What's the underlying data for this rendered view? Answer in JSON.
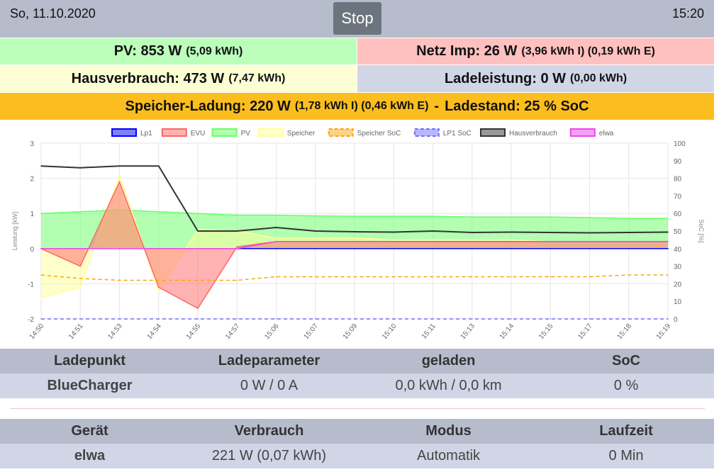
{
  "header": {
    "date": "So, 11.10.2020",
    "time": "15:20",
    "stop_label": "Stop"
  },
  "summary": {
    "pv_main": "PV: 853 W",
    "pv_sub": "(5,09 kWh)",
    "netz_main": "Netz Imp: 26 W",
    "netz_sub": "(3,96 kWh I) (0,19 kWh E)",
    "haus_main": "Hausverbrauch: 473 W",
    "haus_sub": "(7,47 kWh)",
    "lade_main": "Ladeleistung: 0 W",
    "lade_sub": "(0,00 kWh)",
    "speicher_main": "Speicher-Ladung: 220 W",
    "speicher_sub": "(1,78 kWh I) (0,46 kWh E)",
    "speicher_sep": "-",
    "speicher_soc": "Ladestand: 25 % SoC"
  },
  "colors": {
    "pv_bg": "#bbffbb",
    "netz_bg": "#ffc0c0",
    "haus_bg": "#fefed5",
    "lade_bg": "#d0d6e6",
    "speicher_bg": "#fcbe1e"
  },
  "chart_data": {
    "type": "line",
    "x": [
      "14:50",
      "14:51",
      "14:53",
      "14:54",
      "14:55",
      "14:57",
      "15:06",
      "15:07",
      "15:09",
      "15:10",
      "15:11",
      "15:13",
      "15:14",
      "15:15",
      "15:17",
      "15:18",
      "15:19"
    ],
    "y_left": {
      "label": "Leistung [kW]",
      "range": [
        -2,
        3
      ],
      "ticks": [
        "3",
        "2",
        "1",
        "0",
        "-1",
        "-2"
      ]
    },
    "y_right": {
      "label": "SoC [%]",
      "range": [
        0,
        100
      ],
      "ticks": [
        "100",
        "90",
        "80",
        "70",
        "60",
        "50",
        "40",
        "30",
        "20",
        "10",
        "0"
      ]
    },
    "grid": true,
    "legend_position": "top",
    "series": [
      {
        "name": "Lp1",
        "color": "#0000ff",
        "values": [
          0,
          0,
          0,
          0,
          0,
          0,
          0,
          0,
          0,
          0,
          0,
          0,
          0,
          0,
          0,
          0,
          0
        ]
      },
      {
        "name": "EVU",
        "color": "#ff6666",
        "values": [
          0,
          -0.5,
          1.9,
          -1.1,
          -1.7,
          0.05,
          0.2,
          0.2,
          0.2,
          0.2,
          0.2,
          0.2,
          0.2,
          0.2,
          0.2,
          0.2,
          0.2
        ]
      },
      {
        "name": "PV",
        "color": "#66ff66",
        "values": [
          1.0,
          1.05,
          1.1,
          1.05,
          1.0,
          0.95,
          0.95,
          0.93,
          0.92,
          0.92,
          0.92,
          0.9,
          0.9,
          0.9,
          0.88,
          0.86,
          0.86
        ]
      },
      {
        "name": "Speicher",
        "color": "#ffff99",
        "values": [
          -1.4,
          -1.1,
          2.1,
          -1.2,
          0.55,
          0.5,
          0.3,
          0.3,
          0.3,
          0.25,
          0.25,
          0.25,
          0.25,
          0.2,
          0.2,
          0.2,
          0.2
        ]
      },
      {
        "name": "Speicher SoC",
        "color": "#fca50a",
        "values": [
          25,
          23,
          22,
          22,
          22,
          22,
          24,
          24,
          24,
          24,
          24,
          24,
          24,
          24,
          24,
          25,
          25
        ]
      },
      {
        "name": "LP1 SoC",
        "color": "#6f6fff",
        "values": [
          0,
          0,
          0,
          0,
          0,
          0,
          0,
          0,
          0,
          0,
          0,
          0,
          0,
          0,
          0,
          0,
          0
        ]
      },
      {
        "name": "Hausverbrauch",
        "color": "#333333",
        "values": [
          2.35,
          2.3,
          2.35,
          2.35,
          0.5,
          0.5,
          0.6,
          0.5,
          0.48,
          0.47,
          0.5,
          0.46,
          0.47,
          0.46,
          0.45,
          0.46,
          0.47
        ]
      },
      {
        "name": "elwa",
        "color": "#ee44ee",
        "values": [
          0,
          0,
          0,
          0,
          0,
          0,
          0.2,
          0.2,
          0.2,
          0.2,
          0.2,
          0.2,
          0.2,
          0.2,
          0.2,
          0.2,
          0.2
        ]
      }
    ]
  },
  "ladepunkt_table": {
    "headers": [
      "Ladepunkt",
      "Ladeparameter",
      "geladen",
      "SoC"
    ],
    "row": {
      "name": "BlueCharger",
      "param": "0 W / 0 A",
      "geladen": "0,0 kWh / 0,0 km",
      "soc": "0 %"
    }
  },
  "geraete_table": {
    "headers": [
      "Gerät",
      "Verbrauch",
      "Modus",
      "Laufzeit"
    ],
    "row": {
      "name": "elwa",
      "verbrauch": "221 W (0,07 kWh)",
      "modus": "Automatik",
      "laufzeit": "0 Min"
    }
  }
}
